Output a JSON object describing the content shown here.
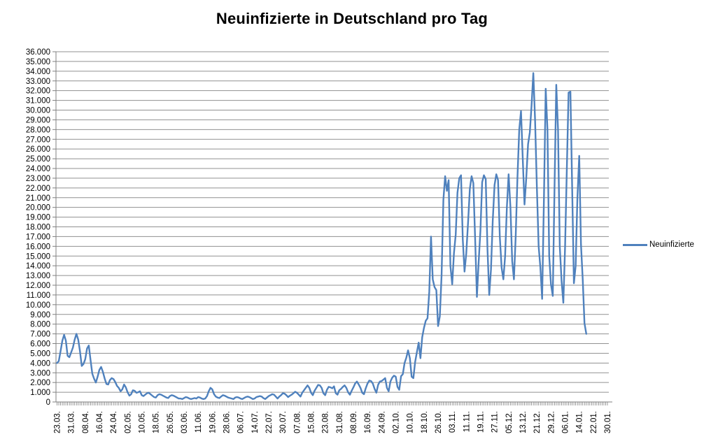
{
  "title": "Neuinfizierte in Deutschland pro Tag",
  "legend": {
    "label": "Neuinfizierte"
  },
  "chart_data": {
    "type": "line",
    "title": "Neuinfizierte in Deutschland pro Tag",
    "xlabel": "",
    "ylabel": "",
    "ylim": [
      0,
      36000
    ],
    "y_tick_step": 1000,
    "grid": true,
    "legend_position": "right",
    "legend_entries": [
      "Neuinfizierte"
    ],
    "axis_slots": 313,
    "x_label_every": 8,
    "x_tick_labels": [
      "23.03.",
      "31.03.",
      "08.04.",
      "16.04.",
      "24.04.",
      "02.05.",
      "10.05.",
      "18.05.",
      "26.05.",
      "03.06.",
      "11.06.",
      "19.06.",
      "28.06.",
      "06.07.",
      "14.07.",
      "22.07.",
      "30.07.",
      "07.08.",
      "15.08.",
      "23.08.",
      "31.08.",
      "08.09.",
      "16.09.",
      "24.09.",
      "02.10.",
      "10.10.",
      "18.10.",
      "26.10.",
      "03.11.",
      "11.11.",
      "19.11.",
      "27.11.",
      "05.12.",
      "13.12.",
      "21.12.",
      "29.12.",
      "06.01.",
      "14.01.",
      "22.01.",
      "30.01."
    ],
    "y_tick_labels": [
      "36.000",
      "35.000",
      "34.000",
      "33.000",
      "32.000",
      "31.000",
      "30.000",
      "29.000",
      "28.000",
      "27.000",
      "26.000",
      "25.000",
      "24.000",
      "23.000",
      "22.000",
      "21.000",
      "20.000",
      "19.000",
      "18.000",
      "17.000",
      "16.000",
      "15.000",
      "14.000",
      "13.000",
      "12.000",
      "11.000",
      "10.000",
      "9.000",
      "8.000",
      "7.000",
      "6.000",
      "5.000",
      "4.000",
      "3.000",
      "2.000",
      "1.000",
      "0"
    ],
    "colors": {
      "line": "#4F81BD",
      "grid": "#919191",
      "axis": "#808080",
      "text": "#000000"
    },
    "series": [
      {
        "name": "Neuinfizierte",
        "color": "#4F81BD",
        "values": [
          4000,
          4200,
          5200,
          6300,
          6900,
          6300,
          4750,
          4600,
          5100,
          5600,
          6400,
          7000,
          6400,
          5200,
          3700,
          3900,
          4400,
          5500,
          5800,
          4300,
          2900,
          2400,
          2000,
          2600,
          3300,
          3600,
          3100,
          2400,
          1850,
          1800,
          2250,
          2450,
          2350,
          2050,
          1650,
          1450,
          1100,
          1300,
          1800,
          1500,
          1000,
          650,
          800,
          1200,
          1150,
          950,
          1000,
          1100,
          700,
          600,
          750,
          900,
          950,
          800,
          650,
          500,
          450,
          700,
          800,
          750,
          650,
          550,
          450,
          400,
          600,
          700,
          650,
          550,
          450,
          350,
          350,
          300,
          400,
          500,
          450,
          350,
          300,
          350,
          400,
          350,
          500,
          450,
          350,
          300,
          350,
          600,
          1100,
          1450,
          1300,
          800,
          550,
          450,
          400,
          550,
          700,
          650,
          550,
          450,
          400,
          350,
          300,
          450,
          500,
          450,
          350,
          300,
          400,
          500,
          550,
          500,
          400,
          300,
          350,
          500,
          550,
          600,
          550,
          400,
          300,
          450,
          600,
          700,
          800,
          750,
          550,
          350,
          550,
          700,
          900,
          850,
          700,
          500,
          650,
          750,
          900,
          1050,
          950,
          750,
          550,
          950,
          1200,
          1450,
          1700,
          1450,
          950,
          700,
          1150,
          1450,
          1750,
          1700,
          1450,
          900,
          700,
          1250,
          1550,
          1500,
          1400,
          1600,
          900,
          750,
          1200,
          1350,
          1550,
          1700,
          1450,
          1000,
          750,
          1150,
          1500,
          1900,
          2100,
          1800,
          1450,
          950,
          800,
          1400,
          1900,
          2200,
          2150,
          1900,
          1350,
          950,
          1750,
          2100,
          2150,
          2300,
          2450,
          1450,
          1100,
          2100,
          2500,
          2700,
          2600,
          1550,
          1250,
          2650,
          2850,
          4000,
          4550,
          5300,
          4500,
          2600,
          2450,
          4100,
          5150,
          6100,
          4500,
          6650,
          7600,
          8350,
          8600,
          11300,
          17000,
          12600,
          11800,
          11500,
          7800,
          8800,
          13000,
          20800,
          23200,
          21700,
          22800,
          14000,
          12100,
          15300,
          17200,
          21500,
          23000,
          23300,
          16700,
          13400,
          15300,
          18500,
          21900,
          23200,
          22500,
          16900,
          10800,
          14400,
          17600,
          22600,
          23300,
          22900,
          15700,
          11000,
          13600,
          18600,
          22300,
          23400,
          22800,
          17000,
          13800,
          12600,
          15000,
          20000,
          23400,
          20000,
          14500,
          12600,
          17000,
          23000,
          28000,
          29900,
          25000,
          20300,
          23000,
          26500,
          27700,
          30500,
          33800,
          29000,
          22000,
          16000,
          13800,
          10600,
          21000,
          32200,
          28000,
          15000,
          12100,
          10900,
          22000,
          32600,
          28000,
          16000,
          12400,
          10200,
          16000,
          24000,
          31800,
          31900,
          22000,
          12200,
          14000,
          21000,
          25300,
          16200,
          12600,
          8100,
          7000
        ]
      }
    ]
  }
}
